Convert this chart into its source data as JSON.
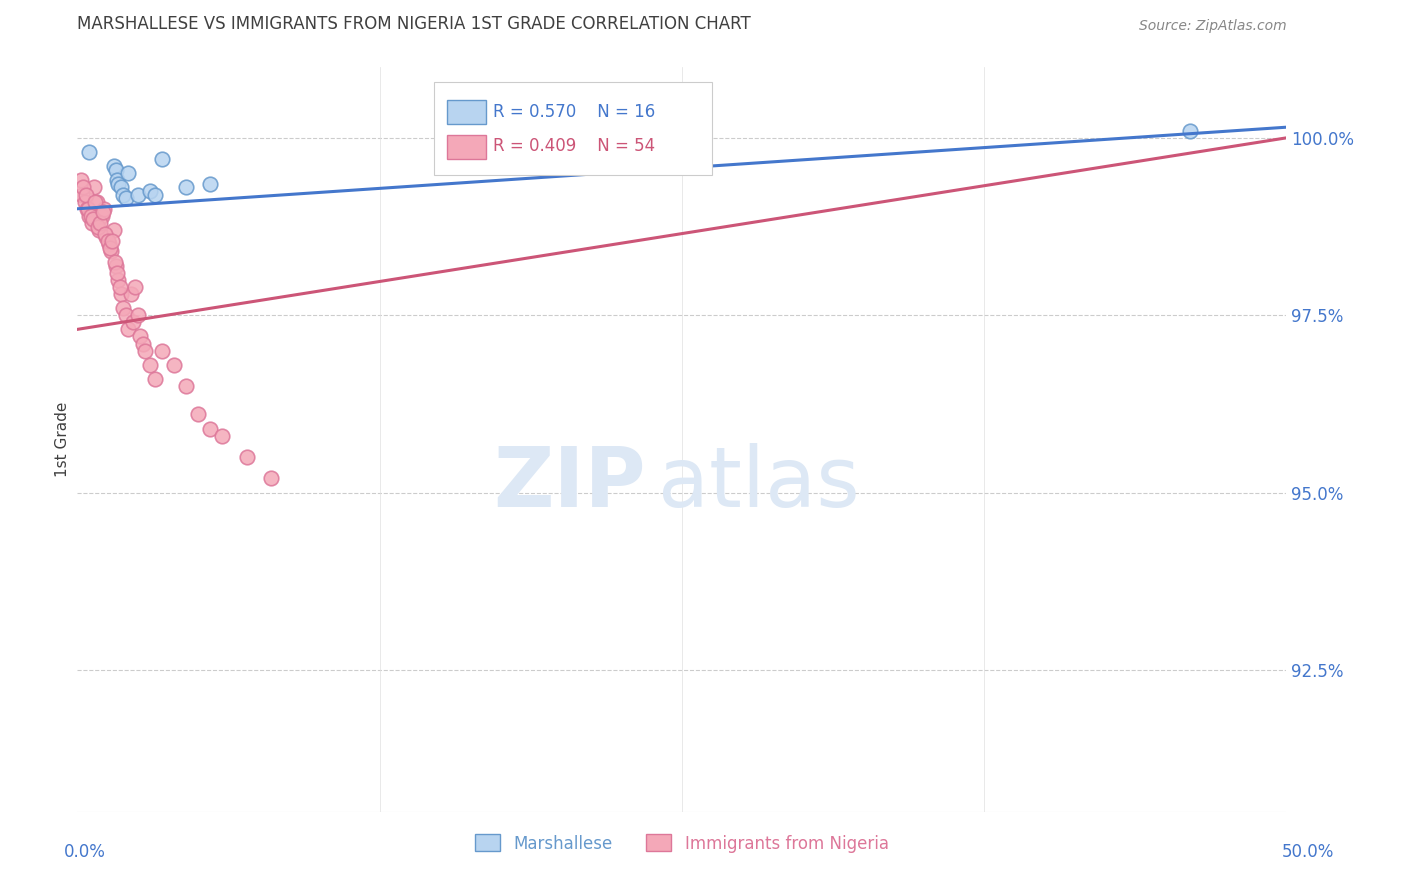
{
  "title": "MARSHALLESE VS IMMIGRANTS FROM NIGERIA 1ST GRADE CORRELATION CHART",
  "source": "Source: ZipAtlas.com",
  "ylabel": "1st Grade",
  "right_ytick_labels": [
    "92.5%",
    "95.0%",
    "97.5%",
    "100.0%"
  ],
  "right_ytick_vals": [
    92.5,
    95.0,
    97.5,
    100.0
  ],
  "xlim": [
    0.0,
    50.0
  ],
  "ylim": [
    90.5,
    101.0
  ],
  "marshallese_x": [
    0.5,
    1.5,
    1.6,
    1.65,
    1.7,
    1.8,
    1.9,
    2.0,
    2.1,
    2.5,
    3.0,
    3.5,
    4.5,
    5.5,
    3.2,
    46.0
  ],
  "marshallese_y": [
    99.8,
    99.6,
    99.55,
    99.4,
    99.35,
    99.3,
    99.2,
    99.15,
    99.5,
    99.2,
    99.25,
    99.7,
    99.3,
    99.35,
    99.2,
    100.1
  ],
  "nigeria_x": [
    0.2,
    0.3,
    0.4,
    0.5,
    0.6,
    0.7,
    0.8,
    0.9,
    1.0,
    1.1,
    1.2,
    1.3,
    1.4,
    1.5,
    1.6,
    1.7,
    1.8,
    1.9,
    2.0,
    2.1,
    2.2,
    2.3,
    2.4,
    2.5,
    2.6,
    2.7,
    2.8,
    3.0,
    3.2,
    3.5,
    4.0,
    4.5,
    5.0,
    5.5,
    6.0,
    7.0,
    8.0,
    0.15,
    0.25,
    0.35,
    0.45,
    0.55,
    0.65,
    0.75,
    0.85,
    0.95,
    1.05,
    1.15,
    1.25,
    1.35,
    1.45,
    1.55,
    1.65,
    1.75
  ],
  "nigeria_y": [
    99.2,
    99.1,
    99.0,
    98.9,
    98.8,
    99.3,
    99.1,
    98.7,
    98.9,
    99.0,
    98.6,
    98.5,
    98.4,
    98.7,
    98.2,
    98.0,
    97.8,
    97.6,
    97.5,
    97.3,
    97.8,
    97.4,
    97.9,
    97.5,
    97.2,
    97.1,
    97.0,
    96.8,
    96.6,
    97.0,
    96.8,
    96.5,
    96.1,
    95.9,
    95.8,
    95.5,
    95.2,
    99.4,
    99.3,
    99.2,
    99.0,
    98.9,
    98.85,
    99.1,
    98.75,
    98.8,
    98.95,
    98.65,
    98.55,
    98.45,
    98.55,
    98.25,
    98.1,
    97.9
  ],
  "marshallese_color": "#b8d4f0",
  "nigeria_color": "#f4a8b8",
  "marshallese_edge": "#6699cc",
  "nigeria_edge": "#dd7799",
  "blue_line_color": "#4477cc",
  "pink_line_color": "#cc5577",
  "blue_line_x0": 0.0,
  "blue_line_y0": 99.0,
  "blue_line_x1": 50.0,
  "blue_line_y1": 100.15,
  "pink_line_x0": 0.0,
  "pink_line_y0": 97.3,
  "pink_line_x1": 50.0,
  "pink_line_y1": 100.0,
  "legend_R_marshallese": "R = 0.570",
  "legend_N_marshallese": "N = 16",
  "legend_R_nigeria": "R = 0.409",
  "legend_N_nigeria": "N = 54",
  "watermark_ZIP": "ZIP",
  "watermark_atlas": "atlas",
  "background_color": "#ffffff",
  "grid_color": "#cccccc",
  "axis_label_color": "#4477cc",
  "title_color": "#404040"
}
